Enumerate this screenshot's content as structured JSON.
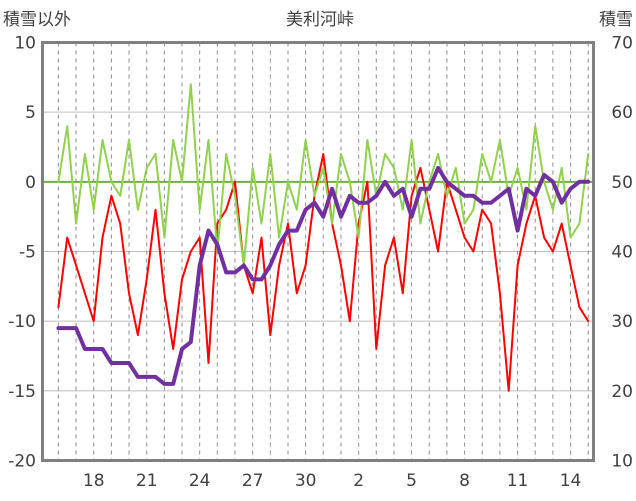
{
  "chart_data": {
    "type": "line",
    "title": "美利河峠",
    "ylabel_left": "積雪以外",
    "ylabel_right": "積雪",
    "left_axis": {
      "ylim": [
        -20,
        10
      ],
      "ticks": [
        "10",
        "5",
        "0",
        "-5",
        "-10",
        "-15",
        "-20"
      ]
    },
    "right_axis": {
      "ylim": [
        10,
        70
      ],
      "ticks": [
        "70",
        "60",
        "50",
        "40",
        "30",
        "20",
        "10"
      ]
    },
    "x_tick_labels": [
      "18",
      "21",
      "24",
      "27",
      "30",
      "2",
      "5",
      "8",
      "11",
      "14"
    ],
    "grid": {
      "horizontal": true,
      "vertical_dashed": true
    },
    "colors": {
      "temperature": "#ff0000",
      "snowfall": "#92d050",
      "snow_depth": "#7030a0",
      "zero_line": "#70ad47",
      "frame": "#808080"
    },
    "series": [
      {
        "axis": "left",
        "color": "#ff0000",
        "x": [
          16,
          16.5,
          17,
          17.5,
          18,
          18.5,
          19,
          19.5,
          20,
          20.5,
          21,
          21.5,
          22,
          22.5,
          23,
          23.5,
          24,
          24.5,
          25,
          25.5,
          26,
          26.5,
          27,
          27.5,
          28,
          28.5,
          29,
          29.5,
          30,
          30.5,
          31,
          31.5,
          32,
          32.5,
          33,
          33.5,
          34,
          34.5,
          35,
          35.5,
          36,
          36.5,
          37,
          37.5,
          38,
          38.5,
          39,
          39.5,
          40,
          40.5,
          41,
          41.5,
          42,
          42.5,
          43,
          43.5,
          44,
          44.5,
          45,
          45.5,
          46
        ],
        "values": [
          -9,
          -4,
          -6,
          -8,
          -10,
          -4,
          -1,
          -3,
          -8,
          -11,
          -7,
          -2,
          -8,
          -12,
          -7,
          -5,
          -4,
          -13,
          -3,
          -2,
          0,
          -6,
          -8,
          -4,
          -11,
          -6,
          -3,
          -8,
          -6,
          -1,
          2,
          -3,
          -6,
          -10,
          -3,
          0,
          -12,
          -6,
          -4,
          -8,
          -1,
          1,
          -2,
          -5,
          0,
          -2,
          -4,
          -5,
          -2,
          -3,
          -8,
          -15,
          -6,
          -3,
          -1,
          -4,
          -5,
          -3,
          -6,
          -9,
          -10
        ]
      },
      {
        "axis": "left",
        "color": "#92d050",
        "x": [
          16,
          16.5,
          17,
          17.5,
          18,
          18.5,
          19,
          19.5,
          20,
          20.5,
          21,
          21.5,
          22,
          22.5,
          23,
          23.5,
          24,
          24.5,
          25,
          25.5,
          26,
          26.5,
          27,
          27.5,
          28,
          28.5,
          29,
          29.5,
          30,
          30.5,
          31,
          31.5,
          32,
          32.5,
          33,
          33.5,
          34,
          34.5,
          35,
          35.5,
          36,
          36.5,
          37,
          37.5,
          38,
          38.5,
          39,
          39.5,
          40,
          40.5,
          41,
          41.5,
          42,
          42.5,
          43,
          43.5,
          44,
          44.5,
          45,
          45.5,
          46
        ],
        "values": [
          0,
          4,
          -3,
          2,
          -2,
          3,
          0,
          -1,
          3,
          -2,
          1,
          2,
          -4,
          3,
          0,
          7,
          -2,
          3,
          -5,
          2,
          -1,
          -6,
          1,
          -3,
          2,
          -4,
          0,
          -2,
          3,
          -1,
          1,
          -3,
          2,
          0,
          -4,
          3,
          -1,
          2,
          1,
          -2,
          3,
          -3,
          0,
          2,
          -1,
          1,
          -3,
          -2,
          2,
          0,
          3,
          -1,
          1,
          -2,
          4,
          0,
          -2,
          1,
          -4,
          -3,
          2
        ]
      },
      {
        "axis": "right",
        "color": "#7030a0",
        "x": [
          16,
          16.5,
          17,
          17.5,
          18,
          18.5,
          19,
          19.5,
          20,
          20.5,
          21,
          21.5,
          22,
          22.5,
          23,
          23.5,
          24,
          24.5,
          25,
          25.5,
          26,
          26.5,
          27,
          27.5,
          28,
          28.5,
          29,
          29.5,
          30,
          30.5,
          31,
          31.5,
          32,
          32.5,
          33,
          33.5,
          34,
          34.5,
          35,
          35.5,
          36,
          36.5,
          37,
          37.5,
          38,
          38.5,
          39,
          39.5,
          40,
          40.5,
          41,
          41.5,
          42,
          42.5,
          43,
          43.5,
          44,
          44.5,
          45,
          45.5,
          46
        ],
        "values": [
          29,
          29,
          29,
          26,
          26,
          26,
          24,
          24,
          24,
          22,
          22,
          22,
          21,
          21,
          26,
          27,
          38,
          43,
          41,
          37,
          37,
          38,
          36,
          36,
          38,
          41,
          43,
          43,
          46,
          47,
          45,
          49,
          45,
          48,
          47,
          47,
          48,
          50,
          48,
          49,
          45,
          49,
          49,
          52,
          50,
          49,
          48,
          48,
          47,
          47,
          48,
          49,
          43,
          49,
          48,
          51,
          50,
          47,
          49,
          50,
          50
        ]
      }
    ]
  }
}
